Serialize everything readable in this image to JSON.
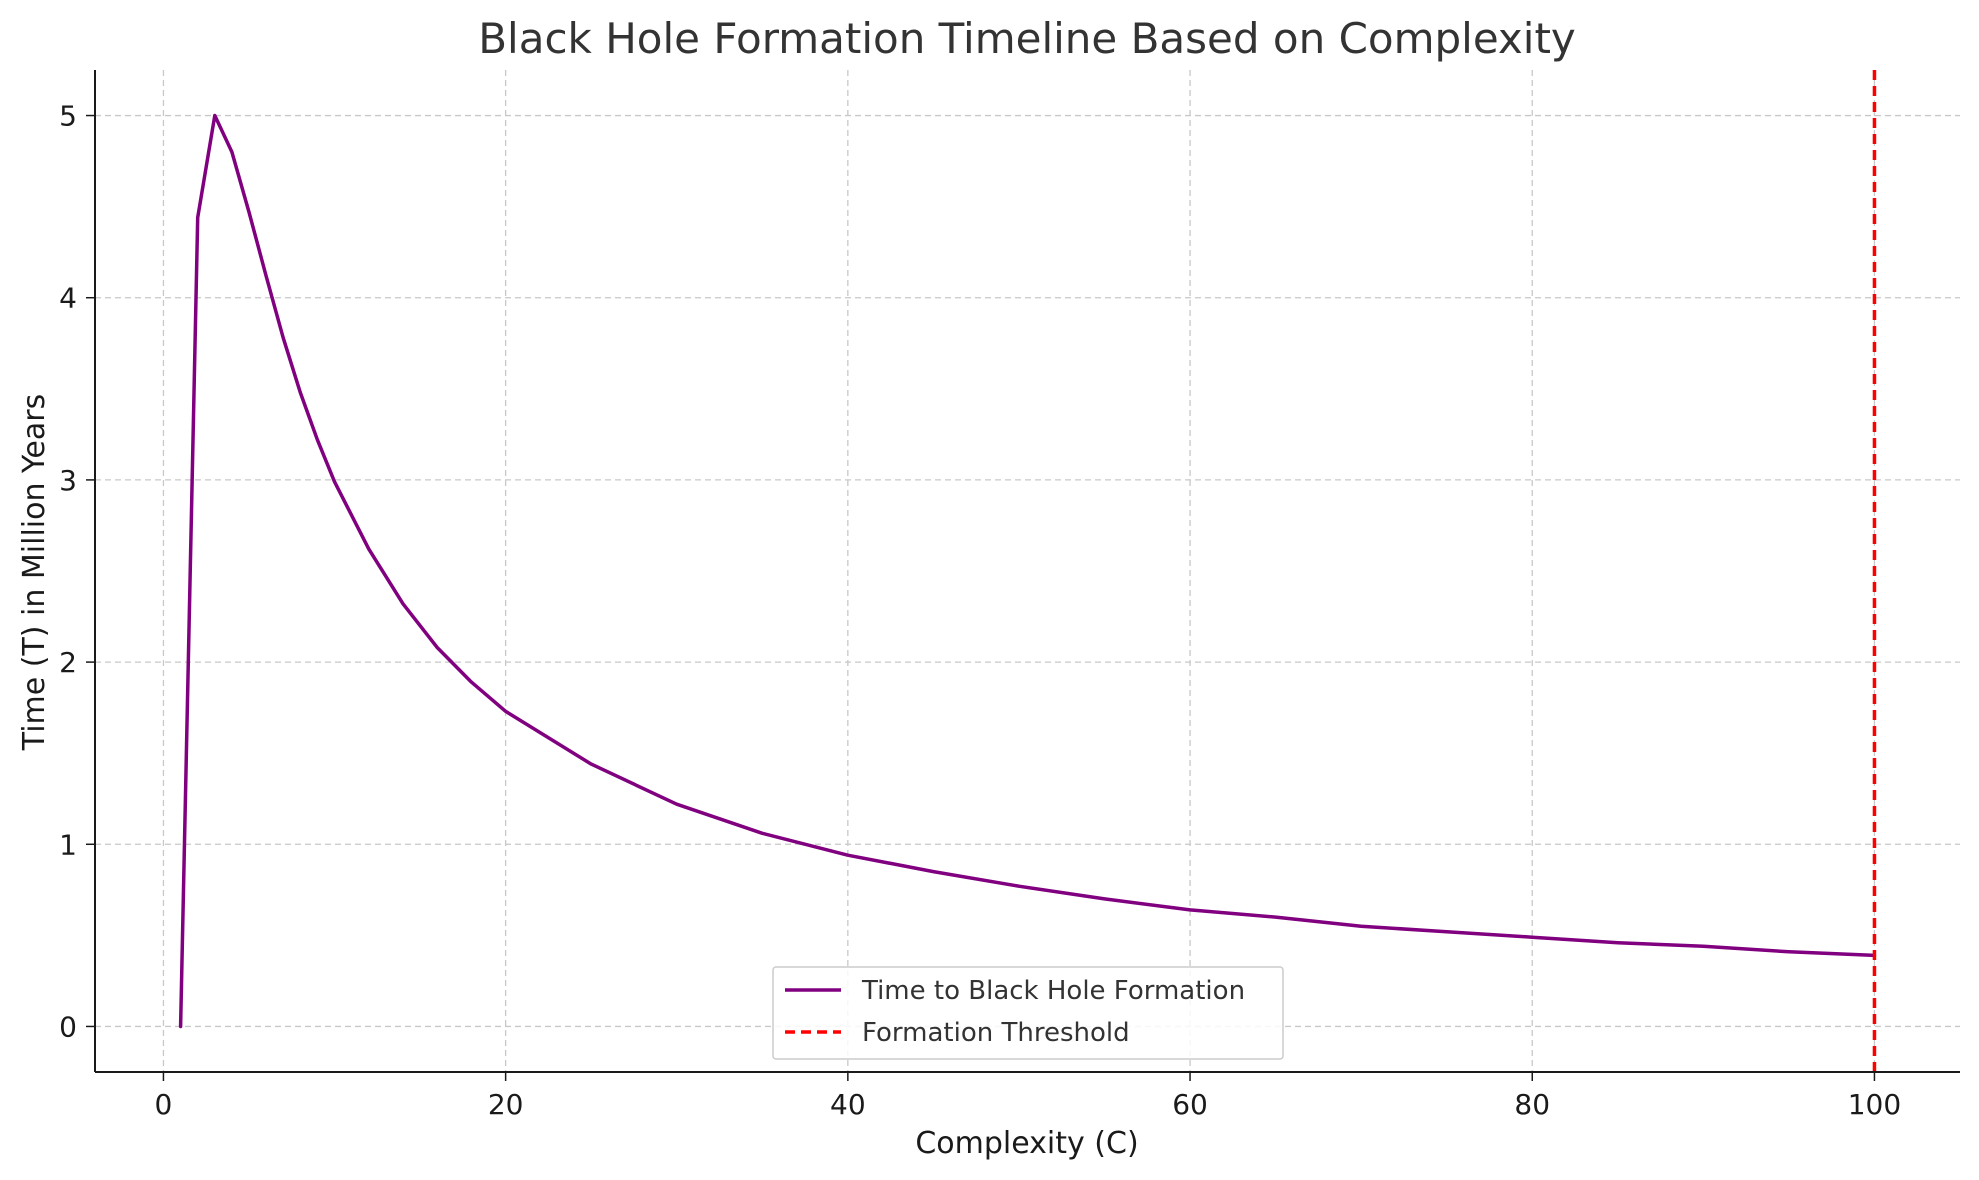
{
  "chart_data": {
    "type": "line",
    "title": "Black Hole Formation Timeline Based on Complexity",
    "xlabel": "Complexity (C)",
    "ylabel": "Time (T) in Million Years",
    "xlim": [
      -4,
      105
    ],
    "ylim": [
      -0.25,
      5.25
    ],
    "x_ticks": [
      0,
      20,
      40,
      60,
      80,
      100
    ],
    "y_ticks": [
      0,
      1,
      2,
      3,
      4,
      5
    ],
    "grid": true,
    "legend_position": "lower-center",
    "series": [
      {
        "name": "Time to Black Hole Formation",
        "color": "#800080",
        "style": "solid",
        "x": [
          1,
          2,
          3,
          4,
          5,
          6,
          7,
          8,
          9,
          10,
          12,
          14,
          16,
          18,
          20,
          25,
          30,
          35,
          40,
          45,
          50,
          55,
          60,
          65,
          70,
          75,
          80,
          85,
          90,
          95,
          100
        ],
        "y": [
          0,
          4.44,
          5.0,
          4.8,
          4.47,
          4.12,
          3.78,
          3.48,
          3.22,
          2.99,
          2.62,
          2.32,
          2.08,
          1.89,
          1.73,
          1.44,
          1.22,
          1.06,
          0.94,
          0.85,
          0.77,
          0.7,
          0.64,
          0.6,
          0.55,
          0.52,
          0.49,
          0.46,
          0.44,
          0.41,
          0.39
        ]
      },
      {
        "name": "Formation Threshold",
        "color": "#ff0000",
        "style": "dashed",
        "x_value": 100
      }
    ]
  }
}
